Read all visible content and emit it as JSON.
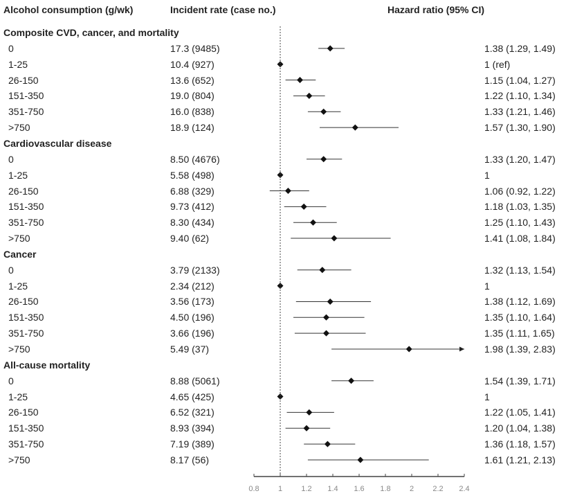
{
  "chart_data": {
    "type": "forest",
    "headers": {
      "category": "Alcohol consumption (g/wk)",
      "rate": "Incident rate (case no.)",
      "hr": "Hazard ratio (95% CI)"
    },
    "xlim": [
      0.8,
      2.4
    ],
    "reference_line": 1,
    "xticks": [
      "0.8",
      "1",
      "1.2",
      "1.4",
      "1.6",
      "1.8",
      "2",
      "2.2",
      "2.4"
    ],
    "groups": [
      {
        "title": "Composite CVD, cancer, and mortality",
        "rows": [
          {
            "label": "0",
            "rate": "17.3 (9485)",
            "hr_text": "1.38 (1.29, 1.49)",
            "hr": 1.38,
            "lo": 1.29,
            "hi": 1.49
          },
          {
            "label": "1-25",
            "rate": "10.4 (927)",
            "hr_text": "1 (ref)",
            "hr": 1,
            "lo": 1,
            "hi": 1
          },
          {
            "label": "26-150",
            "rate": "13.6 (652)",
            "hr_text": "1.15 (1.04, 1.27)",
            "hr": 1.15,
            "lo": 1.04,
            "hi": 1.27
          },
          {
            "label": "151-350",
            "rate": "19.0 (804)",
            "hr_text": "1.22 (1.10, 1.34)",
            "hr": 1.22,
            "lo": 1.1,
            "hi": 1.34
          },
          {
            "label": "351-750",
            "rate": "16.0 (838)",
            "hr_text": "1.33 (1.21, 1.46)",
            "hr": 1.33,
            "lo": 1.21,
            "hi": 1.46
          },
          {
            "label": ">750",
            "rate": "18.9 (124)",
            "hr_text": "1.57 (1.30, 1.90)",
            "hr": 1.57,
            "lo": 1.3,
            "hi": 1.9
          }
        ]
      },
      {
        "title": "Cardiovascular disease",
        "rows": [
          {
            "label": "0",
            "rate": "8.50 (4676)",
            "hr_text": "1.33 (1.20, 1.47)",
            "hr": 1.33,
            "lo": 1.2,
            "hi": 1.47
          },
          {
            "label": "1-25",
            "rate": "5.58 (498)",
            "hr_text": "1",
            "hr": 1,
            "lo": 1,
            "hi": 1
          },
          {
            "label": "26-150",
            "rate": "6.88 (329)",
            "hr_text": "1.06 (0.92, 1.22)",
            "hr": 1.06,
            "lo": 0.92,
            "hi": 1.22
          },
          {
            "label": "151-350",
            "rate": "9.73 (412)",
            "hr_text": "1.18 (1.03, 1.35)",
            "hr": 1.18,
            "lo": 1.03,
            "hi": 1.35
          },
          {
            "label": "351-750",
            "rate": "8.30 (434)",
            "hr_text": "1.25 (1.10, 1.43)",
            "hr": 1.25,
            "lo": 1.1,
            "hi": 1.43
          },
          {
            "label": ">750",
            "rate": "9.40 (62)",
            "hr_text": "1.41 (1.08, 1.84)",
            "hr": 1.41,
            "lo": 1.08,
            "hi": 1.84
          }
        ]
      },
      {
        "title": "Cancer",
        "rows": [
          {
            "label": "0",
            "rate": "3.79 (2133)",
            "hr_text": "1.32 (1.13, 1.54)",
            "hr": 1.32,
            "lo": 1.13,
            "hi": 1.54
          },
          {
            "label": "1-25",
            "rate": "2.34 (212)",
            "hr_text": "1",
            "hr": 1,
            "lo": 1,
            "hi": 1
          },
          {
            "label": "26-150",
            "rate": "3.56 (173)",
            "hr_text": "1.38 (1.12, 1.69)",
            "hr": 1.38,
            "lo": 1.12,
            "hi": 1.69
          },
          {
            "label": "151-350",
            "rate": "4.50 (196)",
            "hr_text": "1.35 (1.10, 1.64)",
            "hr": 1.35,
            "lo": 1.1,
            "hi": 1.64
          },
          {
            "label": "351-750",
            "rate": "3.66 (196)",
            "hr_text": "1.35 (1.11, 1.65)",
            "hr": 1.35,
            "lo": 1.11,
            "hi": 1.65
          },
          {
            "label": ">750",
            "rate": "5.49 (37)",
            "hr_text": "1.98 (1.39, 2.83)",
            "hr": 1.98,
            "lo": 1.39,
            "hi": 2.83
          }
        ]
      },
      {
        "title": "All-cause mortality",
        "rows": [
          {
            "label": "0",
            "rate": "8.88 (5061)",
            "hr_text": "1.54 (1.39, 1.71)",
            "hr": 1.54,
            "lo": 1.39,
            "hi": 1.71
          },
          {
            "label": "1-25",
            "rate": "4.65 (425)",
            "hr_text": "1",
            "hr": 1,
            "lo": 1,
            "hi": 1
          },
          {
            "label": "26-150",
            "rate": "6.52 (321)",
            "hr_text": "1.22 (1.05, 1.41)",
            "hr": 1.22,
            "lo": 1.05,
            "hi": 1.41
          },
          {
            "label": "151-350",
            "rate": "8.93 (394)",
            "hr_text": "1.20 (1.04, 1.38)",
            "hr": 1.2,
            "lo": 1.04,
            "hi": 1.38
          },
          {
            "label": "351-750",
            "rate": "7.19 (389)",
            "hr_text": "1.36 (1.18, 1.57)",
            "hr": 1.36,
            "lo": 1.18,
            "hi": 1.57
          },
          {
            "label": ">750",
            "rate": "8.17 (56)",
            "hr_text": "1.61 (1.21, 2.13)",
            "hr": 1.61,
            "lo": 1.21,
            "hi": 2.13
          }
        ]
      }
    ]
  }
}
